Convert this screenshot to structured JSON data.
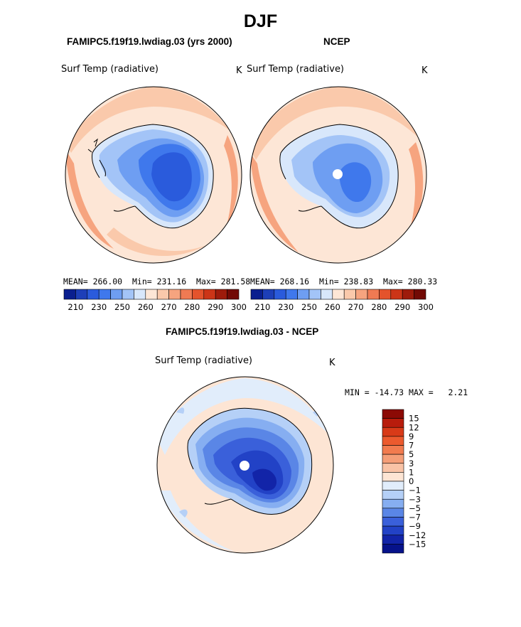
{
  "figure": {
    "season": "DJF",
    "panel_top_left_title": "FAMIPC5.f19f19.lwdiag.03 (yrs 2000)",
    "panel_top_right_title": "NCEP",
    "panel_bottom_title": "FAMIPC5.f19f19.lwdiag.03 - NCEP"
  },
  "chart_data": [
    {
      "type": "heatmap",
      "projection": "south-polar-stereographic",
      "title": "FAMIPC5.f19f19.lwdiag.03 (yrs 2000)",
      "variable": "Surf Temp (radiative)",
      "units": "K",
      "stats": {
        "mean_label": "MEAN=",
        "mean": "266.00",
        "min_label": "Min=",
        "min": "231.16",
        "max_label": "Max=",
        "max": "281.58"
      },
      "colorbar_ticks": [
        "210",
        "230",
        "250",
        "260",
        "270",
        "280",
        "290",
        "300"
      ],
      "colors": [
        "#0a1f8f",
        "#1d3fb8",
        "#2a5bdc",
        "#3f78ec",
        "#6e9ef2",
        "#a3c4f7",
        "#d8e7fb",
        "#fde6d6",
        "#fac9ab",
        "#f6a47f",
        "#ef7a53",
        "#e4532c",
        "#cc3517",
        "#9e1b0b",
        "#720a05"
      ]
    },
    {
      "type": "heatmap",
      "projection": "south-polar-stereographic",
      "title": "NCEP",
      "variable": "Surf Temp (radiative)",
      "units": "K",
      "stats": {
        "mean_label": "MEAN=",
        "mean": "268.16",
        "min_label": "Min=",
        "min": "238.83",
        "max_label": "Max=",
        "max": "280.33"
      },
      "colorbar_ticks": [
        "210",
        "230",
        "250",
        "260",
        "270",
        "280",
        "290",
        "300"
      ],
      "colors": [
        "#0a1f8f",
        "#1d3fb8",
        "#2a5bdc",
        "#3f78ec",
        "#6e9ef2",
        "#a3c4f7",
        "#d8e7fb",
        "#fde6d6",
        "#fac9ab",
        "#f6a47f",
        "#ef7a53",
        "#e4532c",
        "#cc3517",
        "#9e1b0b",
        "#720a05"
      ]
    },
    {
      "type": "heatmap",
      "projection": "south-polar-stereographic",
      "title": "FAMIPC5.f19f19.lwdiag.03 - NCEP",
      "variable": "Surf Temp (radiative)",
      "units": "K",
      "stats": {
        "min_label": "MIN =",
        "min": "-14.73",
        "max_label": "MAX =",
        "max": "2.21"
      },
      "colorbar_ticks": [
        "15",
        "12",
        "9",
        "7",
        "5",
        "3",
        "1",
        "0",
        "−1",
        "−3",
        "−5",
        "−7",
        "−9",
        "−12",
        "−15"
      ],
      "colors": [
        "#8c0a05",
        "#b81c0c",
        "#d83a18",
        "#ec5a2e",
        "#f27b4f",
        "#f59e78",
        "#f9c3a6",
        "#fde5d4",
        "#e1edfb",
        "#b5d0f7",
        "#86aef1",
        "#5a86e6",
        "#3a60da",
        "#2242c6",
        "#1224a8",
        "#06128a"
      ]
    }
  ]
}
